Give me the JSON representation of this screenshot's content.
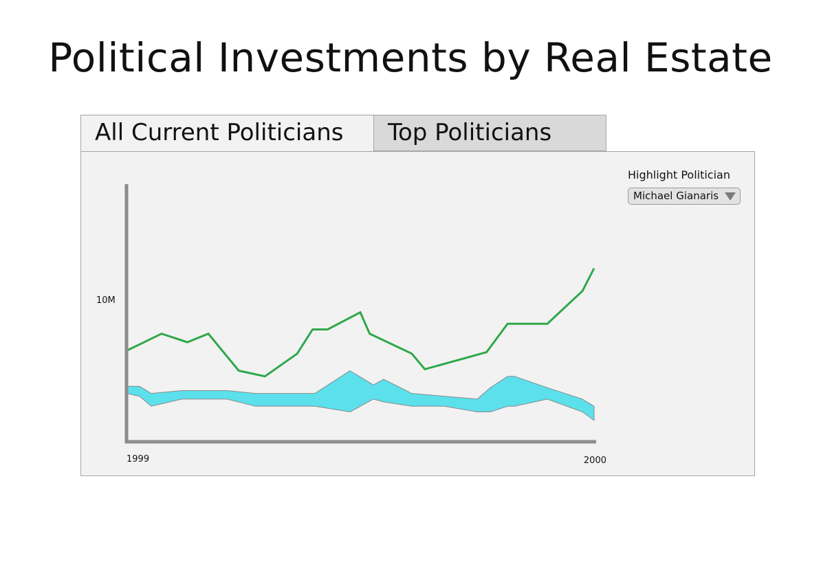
{
  "page": {
    "title": "Political Investments by Real Estate"
  },
  "tabs": [
    {
      "label": "All Current Politicians",
      "active": true
    },
    {
      "label": "Top Politicians",
      "active": false
    }
  ],
  "controls": {
    "highlight_label": "Highlight Politician",
    "highlight_selected": "Michael Gianaris"
  },
  "colors": {
    "highlight_line": "#2ea84a",
    "band_fill": "#5be0ec",
    "band_stroke": "#8a8a8a",
    "axis": "#8c8c8c",
    "panel_bg": "#f2f2f2",
    "active_tab_bg": "#f2f2f2",
    "inactive_tab_bg": "#d9d9d9"
  },
  "chart_data": {
    "type": "area",
    "title": "",
    "xlabel": "",
    "ylabel": "",
    "x_tick_labels": [
      "1999",
      "2000"
    ],
    "y_tick_labels": [
      "10M"
    ],
    "y_tick_values": [
      10000000
    ],
    "xlim": [
      0,
      1
    ],
    "ylim": [
      0,
      12600000
    ],
    "grid": false,
    "series": [
      {
        "name": "Michael Gianaris",
        "type": "line",
        "x": [
          0,
          0.075,
          0.13,
          0.175,
          0.21,
          0.24,
          0.296,
          0.365,
          0.398,
          0.43,
          0.5,
          0.52,
          0.61,
          0.638,
          0.77,
          0.815,
          0.9,
          0.975,
          1
        ],
        "y": [
          6400000,
          7600000,
          7000000,
          7600000,
          6200000,
          5000000,
          4600000,
          6200000,
          7900000,
          7900000,
          9100000,
          7600000,
          6200000,
          5100000,
          6300000,
          8300000,
          8300000,
          10600000,
          12200000
        ]
      },
      {
        "type": "band",
        "x": [
          0,
          0.028,
          0.053,
          0.118,
          0.215,
          0.276,
          0.403,
          0.478,
          0.528,
          0.55,
          0.61,
          0.68,
          0.75,
          0.778,
          0.815,
          0.83,
          0.9,
          0.975,
          1
        ],
        "upper": [
          3900000,
          3900000,
          3400000,
          3600000,
          3600000,
          3400000,
          3400000,
          5000000,
          4000000,
          4400000,
          3400000,
          3200000,
          3000000,
          3800000,
          4600000,
          4600000,
          3800000,
          3000000,
          2500000
        ],
        "lower": [
          3400000,
          3200000,
          2500000,
          3000000,
          3000000,
          2500000,
          2500000,
          2100000,
          3000000,
          2800000,
          2500000,
          2500000,
          2100000,
          2100000,
          2500000,
          2500000,
          3000000,
          2100000,
          1500000
        ]
      }
    ]
  }
}
